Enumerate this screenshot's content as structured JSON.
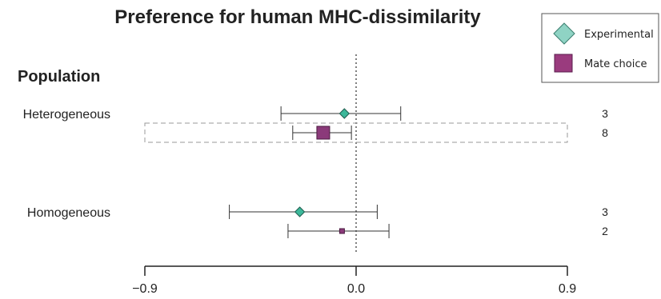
{
  "chart_data": {
    "type": "forest",
    "title": "Preference for human MHC-dissimilarity",
    "column_heading": "Population",
    "xlim": [
      -0.9,
      0.9
    ],
    "x_ticks": [
      "−0.9",
      "0.0",
      "0.9"
    ],
    "x_tick_values": [
      -0.9,
      0.0,
      0.9
    ],
    "reference_line": 0.0,
    "legend_position": "top-right",
    "series": [
      {
        "name": "Experimental",
        "marker": "diamond",
        "color": "#3cb89a",
        "legend_color": "#8fd3c4"
      },
      {
        "name": "Mate choice",
        "marker": "square",
        "color": "#8b3a7a",
        "legend_color": "#9a3b7e"
      }
    ],
    "groups": [
      {
        "label": "Heterogeneous",
        "highlighted": true,
        "rows": [
          {
            "series": "Experimental",
            "estimate": -0.05,
            "ci": [
              -0.32,
              0.19
            ],
            "n": "3",
            "marker_size": 10
          },
          {
            "series": "Mate choice",
            "estimate": -0.14,
            "ci": [
              -0.27,
              -0.02
            ],
            "n": "8",
            "marker_size": 16
          }
        ]
      },
      {
        "label": "Homogeneous",
        "highlighted": false,
        "rows": [
          {
            "series": "Experimental",
            "estimate": -0.24,
            "ci": [
              -0.54,
              0.09
            ],
            "n": "3",
            "marker_size": 10
          },
          {
            "series": "Mate choice",
            "estimate": -0.06,
            "ci": [
              -0.29,
              0.14
            ],
            "n": "2",
            "marker_size": 6
          }
        ]
      }
    ]
  }
}
